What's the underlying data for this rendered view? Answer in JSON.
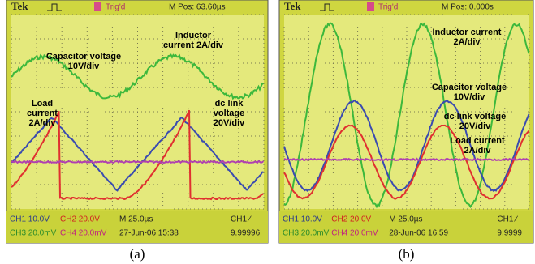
{
  "panels": [
    {
      "top": {
        "brand": "Tek",
        "trigger": "Trig'd",
        "position": "M Pos: 63.60µs"
      },
      "annotations": [
        [
          "Capacitor voltage",
          "10V/div"
        ],
        [
          "Inductor",
          "current 2A/div"
        ],
        [
          "Load",
          "current",
          "2A/div"
        ],
        [
          "dc link",
          "voltage",
          "20V/div"
        ]
      ],
      "status": [
        [
          "CH1  10.0V",
          "CH2  20.0V",
          "M 25.0µs",
          "CH1 ∕"
        ],
        [
          "CH3  20.0mV",
          "CH4  20.0mV",
          "27-Jun-06 15:38",
          "9.99996"
        ]
      ],
      "caption": "(a)"
    },
    {
      "top": {
        "brand": "Tek",
        "trigger": "Trig'd",
        "position": "M Pos: 0.000s"
      },
      "annotations": [
        [
          "Inductor current",
          "2A/div"
        ],
        [
          "Capacitor voltage",
          "10V/div"
        ],
        [
          "dc link voltage",
          "20V/div"
        ],
        [
          "Load current",
          "2A/div"
        ]
      ],
      "status": [
        [
          "CH1  10.0V",
          "CH2  20.0V",
          "M 25.0µs",
          "CH1 ∕"
        ],
        [
          "CH3  20.0mV",
          "CH4  20.0mV",
          "28-Jun-06 16:59",
          "9.9999"
        ]
      ],
      "caption": "(b)"
    }
  ]
}
